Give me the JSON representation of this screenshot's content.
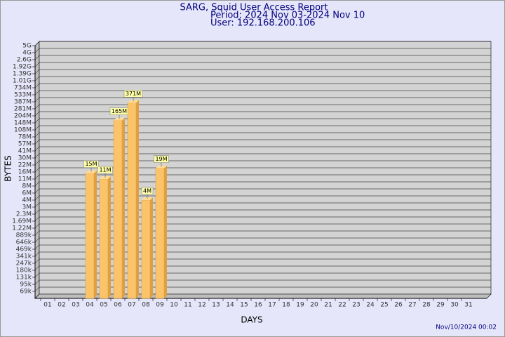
{
  "chart_data": {
    "type": "bar",
    "title": "SARG, Squid User Access Report",
    "subtitle": "Period: 2024 Nov 03-2024 Nov 10",
    "user": "User: 192.168.200.106",
    "x_label": "DAYS",
    "y_label": "BYTES",
    "footer": "Nov/10/2024 00:02",
    "categories": [
      "01",
      "02",
      "03",
      "04",
      "05",
      "06",
      "07",
      "08",
      "09",
      "10",
      "11",
      "12",
      "13",
      "14",
      "15",
      "16",
      "17",
      "18",
      "19",
      "20",
      "21",
      "22",
      "23",
      "24",
      "25",
      "26",
      "27",
      "28",
      "29",
      "30",
      "31"
    ],
    "values": [
      null,
      null,
      null,
      15000000,
      11000000,
      165000000,
      371000000,
      4000000,
      19000000,
      null,
      null,
      null,
      null,
      null,
      null,
      null,
      null,
      null,
      null,
      null,
      null,
      null,
      null,
      null,
      null,
      null,
      null,
      null,
      null,
      null,
      null
    ],
    "value_labels": [
      null,
      null,
      null,
      "15M",
      "11M",
      "165M",
      "371M",
      "4M",
      "19M",
      null,
      null,
      null,
      null,
      null,
      null,
      null,
      null,
      null,
      null,
      null,
      null,
      null,
      null,
      null,
      null,
      null,
      null,
      null,
      null,
      null,
      null
    ],
    "color": "#fbc46a",
    "ylim": [
      50000,
      5000000000
    ],
    "yticks": [
      {
        "value": 69000,
        "label": "69k"
      },
      {
        "value": 95000,
        "label": "95k"
      },
      {
        "value": 131000,
        "label": "131k"
      },
      {
        "value": 180000,
        "label": "180k"
      },
      {
        "value": 247000,
        "label": "247k"
      },
      {
        "value": 341000,
        "label": "341k"
      },
      {
        "value": 469000,
        "label": "469k"
      },
      {
        "value": 646000,
        "label": "646k"
      },
      {
        "value": 889000,
        "label": "889k"
      },
      {
        "value": 1220000,
        "label": "1.22M"
      },
      {
        "value": 1690000,
        "label": "1.69M"
      },
      {
        "value": 2300000,
        "label": "2.3M"
      },
      {
        "value": 3000000,
        "label": "3M"
      },
      {
        "value": 4000000,
        "label": "4M"
      },
      {
        "value": 6000000,
        "label": "6M"
      },
      {
        "value": 8000000,
        "label": "8M"
      },
      {
        "value": 11000000,
        "label": "11M"
      },
      {
        "value": 16000000,
        "label": "16M"
      },
      {
        "value": 22000000,
        "label": "22M"
      },
      {
        "value": 30000000,
        "label": "30M"
      },
      {
        "value": 41000000,
        "label": "41M"
      },
      {
        "value": 57000000,
        "label": "57M"
      },
      {
        "value": 78000000,
        "label": "78M"
      },
      {
        "value": 108000000,
        "label": "108M"
      },
      {
        "value": 148000000,
        "label": "148M"
      },
      {
        "value": 204000000,
        "label": "204M"
      },
      {
        "value": 281000000,
        "label": "281M"
      },
      {
        "value": 387000000,
        "label": "387M"
      },
      {
        "value": 533000000,
        "label": "533M"
      },
      {
        "value": 734000000,
        "label": "734M"
      },
      {
        "value": 1010000000,
        "label": "1.01G"
      },
      {
        "value": 1390000000,
        "label": "1.39G"
      },
      {
        "value": 1920000000,
        "label": "1.92G"
      },
      {
        "value": 2600000000,
        "label": "2.6G"
      },
      {
        "value": 4000000000,
        "label": "4G"
      },
      {
        "value": 5000000000,
        "label": "5G"
      }
    ],
    "grid": true
  }
}
